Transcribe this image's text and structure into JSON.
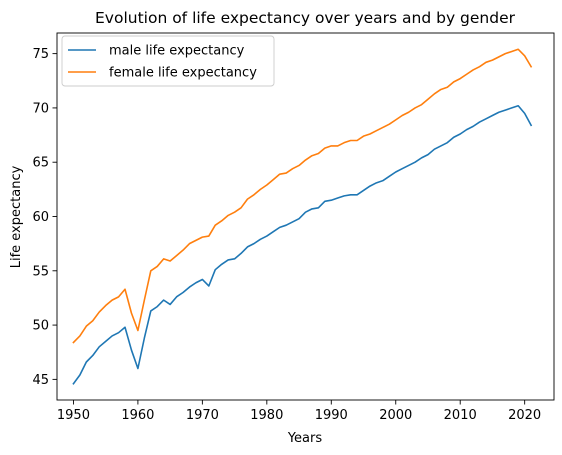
{
  "chart_data": {
    "type": "line",
    "title": "Evolution of life expectancy over years and by gender",
    "xlabel": "Years",
    "ylabel": "Life expectancy",
    "xlim": [
      1947.45,
      2024.55
    ],
    "ylim": [
      43.1,
      76.9
    ],
    "xticks": [
      1950,
      1960,
      1970,
      1980,
      1990,
      2000,
      2010,
      2020
    ],
    "yticks": [
      45,
      50,
      55,
      60,
      65,
      70,
      75
    ],
    "legend": "upper-left",
    "grid": false,
    "x": [
      1950,
      1951,
      1952,
      1953,
      1954,
      1955,
      1956,
      1957,
      1958,
      1959,
      1960,
      1961,
      1962,
      1963,
      1964,
      1965,
      1966,
      1967,
      1968,
      1969,
      1970,
      1971,
      1972,
      1973,
      1974,
      1975,
      1976,
      1977,
      1978,
      1979,
      1980,
      1981,
      1982,
      1983,
      1984,
      1985,
      1986,
      1987,
      1988,
      1989,
      1990,
      1991,
      1992,
      1993,
      1994,
      1995,
      1996,
      1997,
      1998,
      1999,
      2000,
      2001,
      2002,
      2003,
      2004,
      2005,
      2006,
      2007,
      2008,
      2009,
      2010,
      2011,
      2012,
      2013,
      2014,
      2015,
      2016,
      2017,
      2018,
      2019,
      2020,
      2021
    ],
    "series": [
      {
        "name": "male life expectancy",
        "color": "#1f77b4",
        "values": [
          44.6,
          45.4,
          46.6,
          47.2,
          48.0,
          48.5,
          49.0,
          49.3,
          49.8,
          47.7,
          46.0,
          48.8,
          51.3,
          51.7,
          52.3,
          51.9,
          52.6,
          53.0,
          53.5,
          53.9,
          54.2,
          53.6,
          55.1,
          55.6,
          56.0,
          56.1,
          56.6,
          57.2,
          57.5,
          57.9,
          58.2,
          58.6,
          59.0,
          59.2,
          59.5,
          59.8,
          60.4,
          60.7,
          60.8,
          61.4,
          61.5,
          61.7,
          61.9,
          62.0,
          62.0,
          62.4,
          62.8,
          63.1,
          63.3,
          63.7,
          64.1,
          64.4,
          64.7,
          65.0,
          65.4,
          65.7,
          66.2,
          66.5,
          66.8,
          67.3,
          67.6,
          68.0,
          68.3,
          68.7,
          69.0,
          69.3,
          69.6,
          69.8,
          70.0,
          70.2,
          69.5,
          68.4
        ]
      },
      {
        "name": "female life expectancy",
        "color": "#ff7f0e",
        "values": [
          48.4,
          49.0,
          49.9,
          50.4,
          51.2,
          51.8,
          52.3,
          52.6,
          53.3,
          51.1,
          49.5,
          52.3,
          55.0,
          55.4,
          56.1,
          55.9,
          56.4,
          56.9,
          57.5,
          57.8,
          58.1,
          58.2,
          59.2,
          59.6,
          60.1,
          60.4,
          60.8,
          61.6,
          62.0,
          62.5,
          62.9,
          63.4,
          63.9,
          64.0,
          64.4,
          64.7,
          65.2,
          65.6,
          65.8,
          66.3,
          66.5,
          66.5,
          66.8,
          67.0,
          67.0,
          67.4,
          67.6,
          67.9,
          68.2,
          68.5,
          68.9,
          69.3,
          69.6,
          70.0,
          70.3,
          70.8,
          71.3,
          71.7,
          71.9,
          72.4,
          72.7,
          73.1,
          73.5,
          73.8,
          74.2,
          74.4,
          74.7,
          75.0,
          75.2,
          75.4,
          74.8,
          73.8
        ]
      }
    ]
  }
}
